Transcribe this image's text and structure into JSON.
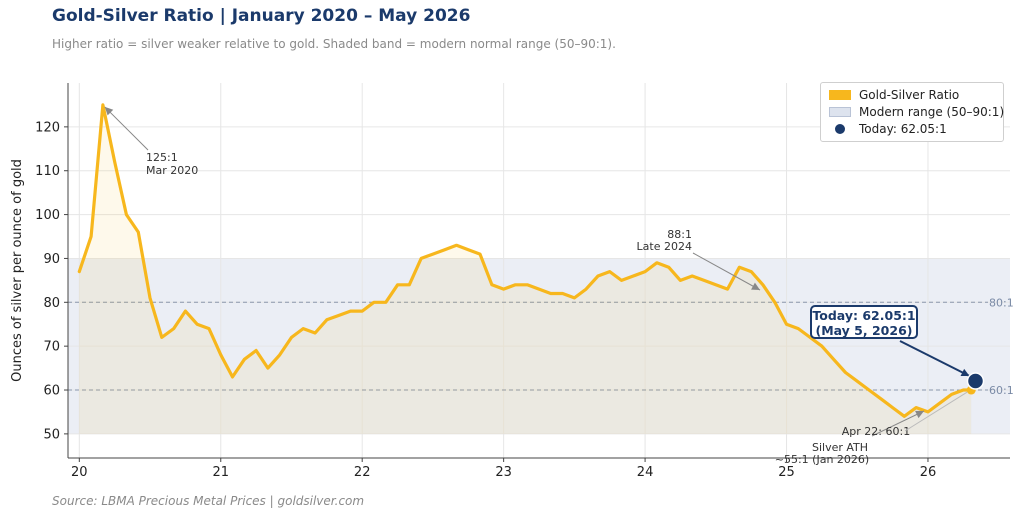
{
  "title": "Gold-Silver Ratio  |  January 2020 – May 2026",
  "subtitle": "Higher ratio = silver weaker relative to gold. Shaded band = modern normal range (50–90:1).",
  "source": "Source: LBMA Precious Metal Prices  |  goldsilver.com",
  "colors": {
    "line": "#f7b71d",
    "band": "#dde3ee",
    "today": "#1b3a6b",
    "grid": "#e6e6e6",
    "ref": "#8a96ab"
  },
  "legend": {
    "items": [
      {
        "label": "Gold-Silver Ratio",
        "color": "#f7b71d",
        "kind": "swatch"
      },
      {
        "label": "Modern range (50–90:1)",
        "color": "#dde3ee",
        "kind": "swatch"
      },
      {
        "label": "Today: 62.05:1",
        "color": "#1b3a6b",
        "kind": "dot"
      }
    ]
  },
  "annotations": {
    "peak": [
      "125:1",
      "Mar 2020"
    ],
    "late2024": [
      "88:1",
      "Late 2024"
    ],
    "silver_ath": [
      "Silver ATH",
      "~55:1 (Jan 2026)"
    ],
    "apr22": "Apr 22: 60:1",
    "today_callout": [
      "Today: 62.05:1",
      "(May 5, 2026)"
    ]
  },
  "chart_data": {
    "type": "line",
    "title": "Gold-Silver Ratio  |  January 2020 – May 2026",
    "xlabel": "",
    "ylabel": "Ounces of silver per ounce of gold",
    "xlim": [
      19.92,
      26.58
    ],
    "ylim": [
      44.5,
      130
    ],
    "x_ticks": [
      20,
      21,
      22,
      23,
      24,
      25,
      26
    ],
    "x_tick_labels": [
      "20",
      "21",
      "22",
      "23",
      "24",
      "25",
      "26"
    ],
    "y_ticks": [
      50,
      60,
      70,
      80,
      90,
      100,
      110,
      120
    ],
    "grid": true,
    "legend_position": "top-right",
    "band": {
      "low": 50,
      "high": 90,
      "label": "Modern range (50–90:1)"
    },
    "reference_lines": [
      {
        "y": 80,
        "label": "80:1"
      },
      {
        "y": 60,
        "label": "60:1"
      }
    ],
    "series": [
      {
        "name": "Gold-Silver Ratio",
        "x": [
          20.0,
          20.083,
          20.167,
          20.25,
          20.333,
          20.417,
          20.5,
          20.583,
          20.667,
          20.75,
          20.833,
          20.917,
          21.0,
          21.083,
          21.167,
          21.25,
          21.333,
          21.417,
          21.5,
          21.583,
          21.667,
          21.75,
          21.833,
          21.917,
          22.0,
          22.083,
          22.167,
          22.25,
          22.333,
          22.417,
          22.5,
          22.583,
          22.667,
          22.75,
          22.833,
          22.917,
          23.0,
          23.083,
          23.167,
          23.25,
          23.333,
          23.417,
          23.5,
          23.583,
          23.667,
          23.75,
          23.833,
          23.917,
          24.0,
          24.083,
          24.167,
          24.25,
          24.333,
          24.417,
          24.5,
          24.583,
          24.667,
          24.75,
          24.833,
          24.917,
          25.0,
          25.083,
          25.167,
          25.25,
          25.333,
          25.417,
          25.5,
          25.583,
          25.667,
          25.75,
          25.833,
          25.917,
          26.0,
          26.083,
          26.167,
          26.25,
          26.306
        ],
        "y": [
          87,
          95,
          125,
          112,
          100,
          96,
          81,
          72,
          74,
          78,
          75,
          74,
          68,
          63,
          67,
          69,
          65,
          68,
          72,
          74,
          73,
          76,
          77,
          78,
          78,
          80,
          80,
          84,
          84,
          90,
          91,
          92,
          93,
          92,
          91,
          84,
          83,
          84,
          84,
          83,
          82,
          82,
          81,
          83,
          86,
          87,
          85,
          86,
          87,
          89,
          88,
          85,
          86,
          85,
          84,
          83,
          88,
          87,
          84,
          80,
          75,
          74,
          72,
          70,
          67,
          64,
          62,
          60,
          58,
          56,
          54,
          56,
          55,
          57,
          59,
          60,
          60
        ]
      },
      {
        "name": "Today: 62.05:1",
        "x": [
          26.336
        ],
        "y": [
          62.05
        ]
      }
    ]
  }
}
